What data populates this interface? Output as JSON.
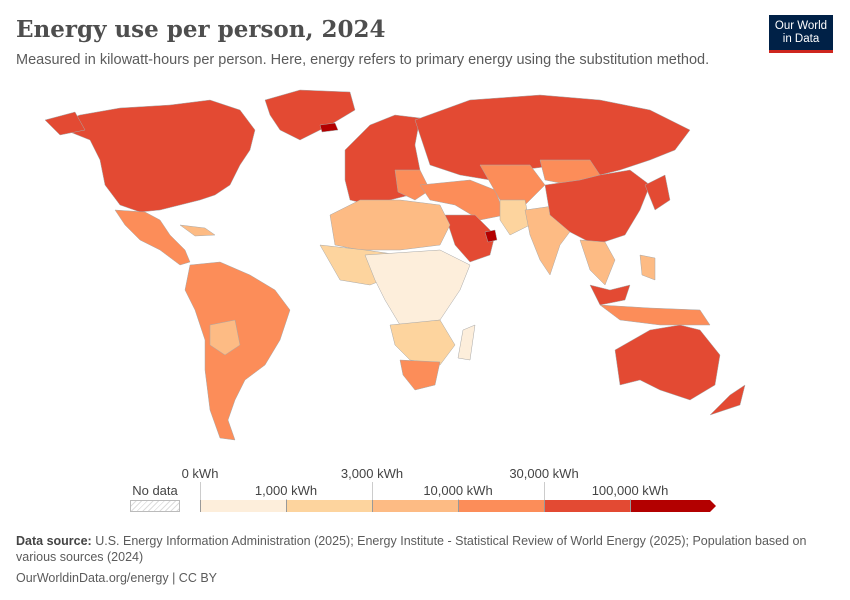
{
  "header": {
    "title": "Energy use per person, 2024",
    "subtitle": "Measured in kilowatt-hours per person. Here, energy refers to primary energy using the substitution method.",
    "logo": "Our World in Data"
  },
  "chart_data": {
    "type": "choropleth",
    "title": "Energy use per person, 2024",
    "unit": "kWh per person",
    "legend": {
      "no_data_label": "No data",
      "bins": [
        {
          "from": "0 kWh",
          "to": "1,000 kWh",
          "color": "#fdeedb"
        },
        {
          "from": "1,000 kWh",
          "to": "3,000 kWh",
          "color": "#fdd49e"
        },
        {
          "from": "3,000 kWh",
          "to": "10,000 kWh",
          "color": "#fdbb84"
        },
        {
          "from": "10,000 kWh",
          "to": "30,000 kWh",
          "color": "#fc8d59"
        },
        {
          "from": "30,000 kWh",
          "to": "100,000 kWh",
          "color": "#e34a33"
        },
        {
          "from": "100,000 kWh",
          "to": "",
          "color": "#b30000"
        }
      ],
      "tick_labels": [
        "0 kWh",
        "1,000 kWh",
        "3,000 kWh",
        "10,000 kWh",
        "30,000 kWh",
        "100,000 kWh"
      ]
    }
  },
  "footer": {
    "source_label": "Data source:",
    "source": "U.S. Energy Information Administration (2025); Energy Institute - Statistical Review of World Energy (2025); Population based on various sources (2024)",
    "link": "OurWorldinData.org/energy | CC BY"
  }
}
